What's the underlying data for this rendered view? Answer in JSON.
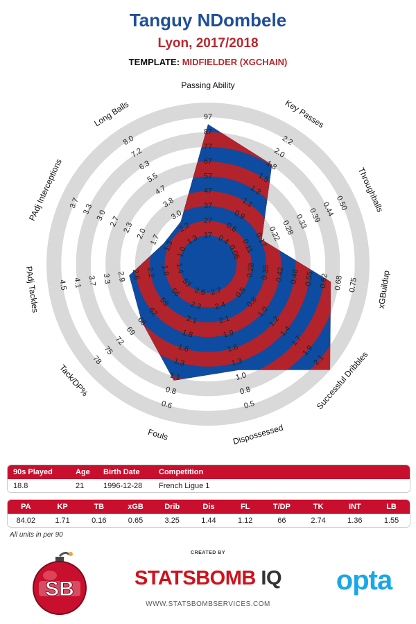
{
  "header": {
    "player": "Tanguy NDombele",
    "team_season": "Lyon, 2017/2018",
    "template_prefix": "TEMPLATE:",
    "template_value": "MIDFIELDER (XGCHAIN)"
  },
  "chart_data": {
    "type": "radar",
    "title": "Tanguy NDombele",
    "colors": {
      "band_blue": "#0d4ca1",
      "band_red": "#b2232b",
      "ring_grey": "#d9d9d9"
    },
    "axes": [
      {
        "label": "Passing Ability",
        "ticks": [
          "17",
          "27",
          "37",
          "47",
          "57",
          "67",
          "77",
          "87",
          "97"
        ],
        "value": 84.02,
        "fraction": 0.853
      },
      {
        "label": "Key Passes",
        "ticks": [
          "0.4",
          "0.6",
          "0.9",
          "1.1",
          "1.3",
          "1.5",
          "1.8",
          "2.0",
          "2.2"
        ],
        "value": 1.71,
        "fraction": 0.707
      },
      {
        "label": "Throughballs",
        "ticks": [
          "0.06",
          "0.11",
          "0.17",
          "0.22",
          "0.28",
          "0.33",
          "0.39",
          "0.44",
          "0.50"
        ],
        "value": 0.16,
        "fraction": 0.306
      },
      {
        "label": "xGBuildup",
        "ticks": [
          "0.28",
          "0.35",
          "0.42",
          "0.48",
          "0.55",
          "0.62",
          "0.68",
          "0.75"
        ],
        "value": 0.65,
        "fraction": 0.746
      },
      {
        "label": "Successful Dribbles",
        "ticks": [
          "0.5",
          "0.8",
          "1.0",
          "1.2",
          "1.4",
          "1.7",
          "1.9",
          "2.1"
        ],
        "value": 3.25,
        "fraction": 1.0
      },
      {
        "label": "Dispossessed",
        "ticks": [
          "2.7",
          "2.4",
          "2.1",
          "1.9",
          "1.6",
          "1.3",
          "1.0",
          "0.8",
          "0.5"
        ],
        "value": 1.44,
        "fraction": 0.653
      },
      {
        "label": "Fouls",
        "ticks": [
          "2.6",
          "2.3",
          "2.1",
          "1.8",
          "1.6",
          "1.3",
          "1.1",
          "0.8",
          "0.6"
        ],
        "value": 1.12,
        "fraction": 0.727
      },
      {
        "label": "Tack/DP%",
        "ticks": [
          "53",
          "56",
          "59",
          "62",
          "66",
          "69",
          "72",
          "75",
          "78"
        ],
        "value": 66,
        "fraction": 0.5
      },
      {
        "label": "PAdj Tackles",
        "ticks": [
          "1.4",
          "1.8",
          "2.2",
          "2.6",
          "2.9",
          "3.3",
          "3.7",
          "4.1",
          "4.5"
        ],
        "value": 2.74,
        "fraction": 0.445
      },
      {
        "label": "PAdj Interceptions",
        "ticks": [
          "1.0",
          "1.3",
          "1.7",
          "2.0",
          "2.3",
          "2.7",
          "3.0",
          "3.3",
          "3.7"
        ],
        "value": 1.36,
        "fraction": 0.238
      },
      {
        "label": "Long Balls",
        "ticks": [
          "1.3",
          "2.2",
          "3.0",
          "3.8",
          "4.7",
          "5.5",
          "6.3",
          "7.2",
          "8.0"
        ],
        "value": 1.55,
        "fraction": 0.247
      }
    ]
  },
  "info_table": {
    "headers": [
      "90s Played",
      "Age",
      "Birth Date",
      "Competition"
    ],
    "values": [
      "18.8",
      "21",
      "1996-12-28",
      "French Ligue 1"
    ]
  },
  "stats_table": {
    "headers": [
      "PA",
      "KP",
      "TB",
      "xGB",
      "Drib",
      "Dis",
      "FL",
      "T/DP",
      "TK",
      "INT",
      "LB"
    ],
    "values": [
      "84.02",
      "1.71",
      "0.16",
      "0.65",
      "3.25",
      "1.44",
      "1.12",
      "66",
      "2.74",
      "1.36",
      "1.55"
    ]
  },
  "footer": {
    "units_note": "All units in per 90",
    "created_by": "CREATED BY",
    "brand_part1": "STATSBOMB",
    "brand_part2": "IQ",
    "url": "WWW.STATSBOMBSERVICES.COM",
    "partner": "opta",
    "logo_text": "SB"
  }
}
